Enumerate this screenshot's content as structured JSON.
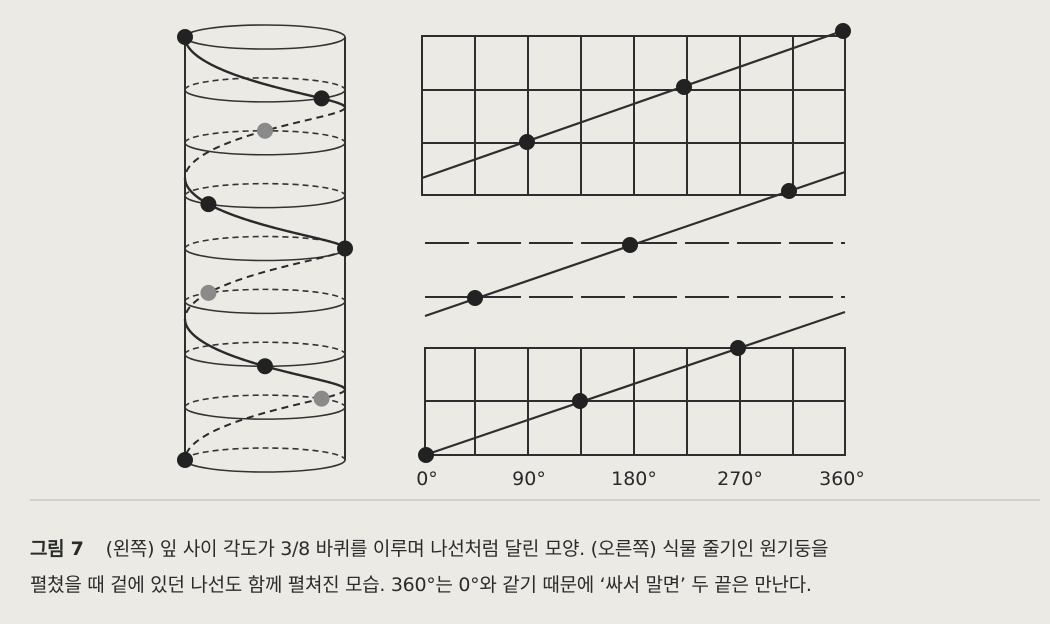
{
  "diagram": {
    "x_axis_labels": [
      "0°",
      "90°",
      "180°",
      "270°",
      "360°"
    ]
  },
  "caption": {
    "label": "그림 7",
    "lines": [
      "(왼쪽) 잎 사이 각도가 3/8 바퀴를 이루며 나선처럼 달린 모양. (오른쪽) 식물 줄기인 원기둥을",
      "펼쳤을 때 겉에 있던 나선도 함께 펼쳐진 모습. 360°는 0°와 같기 때문에 ‘싸서 말면’ 두 끝은 만난다."
    ]
  }
}
